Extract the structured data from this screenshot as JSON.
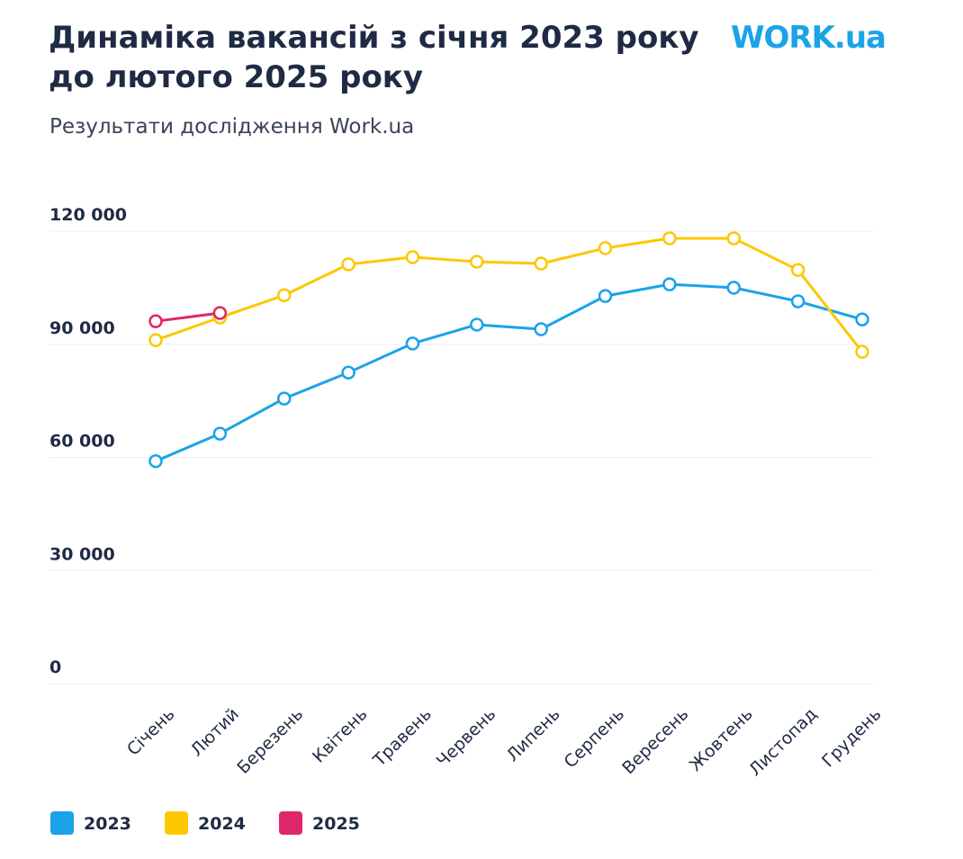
{
  "chart_data": {
    "type": "line",
    "title": "Динаміка вакансій з січня 2023 року до лютого 2025 року",
    "subtitle": "Результати дослідження Work.ua",
    "logo": "WORK.ua",
    "categories": [
      "Січень",
      "Лютий",
      "Березень",
      "Квітень",
      "Травень",
      "Червень",
      "Липень",
      "Серпень",
      "Вересень",
      "Жовтень",
      "Листопад",
      "Грудень"
    ],
    "series": [
      {
        "name": "2023",
        "color": "#1aa3e8",
        "values": [
          59000,
          66300,
          75600,
          82500,
          90200,
          95200,
          94000,
          102800,
          105900,
          105000,
          101400,
          96600
        ]
      },
      {
        "name": "2024",
        "color": "#fcc800",
        "values": [
          91100,
          97100,
          103000,
          111200,
          113100,
          111900,
          111400,
          115500,
          118100,
          118100,
          109700,
          88000
        ]
      },
      {
        "name": "2025",
        "color": "#e0266a",
        "values": [
          96100,
          98300,
          null,
          null,
          null,
          null,
          null,
          null,
          null,
          null,
          null,
          null
        ]
      }
    ],
    "ylim": [
      0,
      120000
    ],
    "yticks": [
      0,
      {
        "value": 30000,
        "label": "30 000"
      },
      {
        "value": 60000,
        "label": "60 000"
      },
      {
        "value": 90000,
        "label": "90 000"
      },
      {
        "value": 120000,
        "label": "120 000"
      }
    ],
    "grid": true,
    "legend": "bottom"
  }
}
